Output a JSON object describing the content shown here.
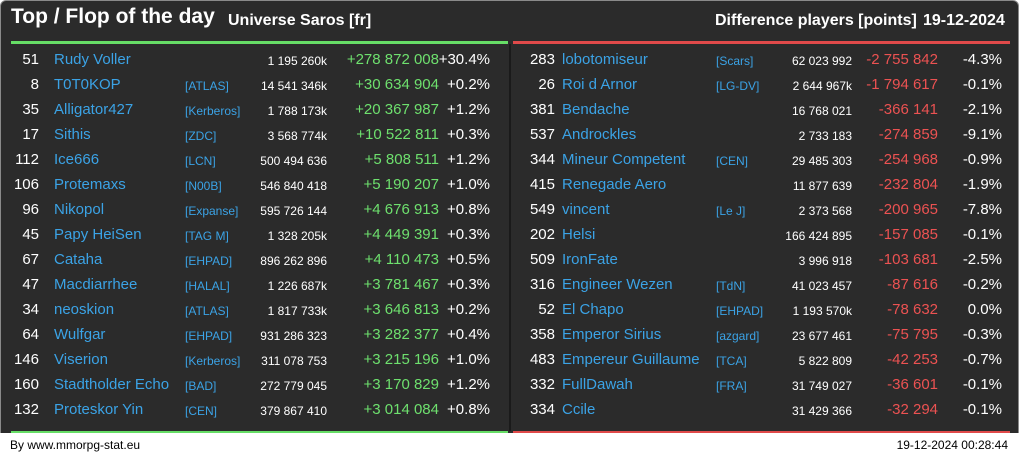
{
  "header": {
    "title": "Top / Flop of the day",
    "universe": "Universe Saros [fr]",
    "difference_label": "Difference players [points]",
    "date": "19-12-2024"
  },
  "colors": {
    "gain": "#6ee06e",
    "loss": "#ec5252",
    "link": "#3ba3e6",
    "background": "#2b2b2b"
  },
  "top": [
    {
      "rank": "51",
      "name": "Rudy Voller",
      "ally": "",
      "points": "1 195 260k",
      "delta": "+278 872 008",
      "pct": "+30.4%"
    },
    {
      "rank": "8",
      "name": "T0T0KOP",
      "ally": "[ATLAS]",
      "points": "14 541 346k",
      "delta": "+30 634 904",
      "pct": "+0.2%"
    },
    {
      "rank": "35",
      "name": "Alligator427",
      "ally": "[Kerberos]",
      "points": "1 788 173k",
      "delta": "+20 367 987",
      "pct": "+1.2%"
    },
    {
      "rank": "17",
      "name": "Sithis",
      "ally": "[ZDC]",
      "points": "3 568 774k",
      "delta": "+10 522 811",
      "pct": "+0.3%"
    },
    {
      "rank": "112",
      "name": "Ice666",
      "ally": "[LCN]",
      "points": "500 494 636",
      "delta": "+5 808 511",
      "pct": "+1.2%"
    },
    {
      "rank": "106",
      "name": "Protemaxs",
      "ally": "[N00B]",
      "points": "546 840 418",
      "delta": "+5 190 207",
      "pct": "+1.0%"
    },
    {
      "rank": "96",
      "name": "Nikopol",
      "ally": "[Expanse]",
      "points": "595 726 144",
      "delta": "+4 676 913",
      "pct": "+0.8%"
    },
    {
      "rank": "45",
      "name": "Papy HeiSen",
      "ally": "[TAG M]",
      "points": "1 328 205k",
      "delta": "+4 449 391",
      "pct": "+0.3%"
    },
    {
      "rank": "67",
      "name": "Cataha",
      "ally": "[EHPAD]",
      "points": "896 262 896",
      "delta": "+4 110 473",
      "pct": "+0.5%"
    },
    {
      "rank": "47",
      "name": "Macdiarrhee",
      "ally": "[HALAL]",
      "points": "1 226 687k",
      "delta": "+3 781 467",
      "pct": "+0.3%"
    },
    {
      "rank": "34",
      "name": "neoskion",
      "ally": "[ATLAS]",
      "points": "1 817 733k",
      "delta": "+3 646 813",
      "pct": "+0.2%"
    },
    {
      "rank": "64",
      "name": "Wulfgar",
      "ally": "[EHPAD]",
      "points": "931 286 323",
      "delta": "+3 282 377",
      "pct": "+0.4%"
    },
    {
      "rank": "146",
      "name": "Viserion",
      "ally": "[Kerberos]",
      "points": "311 078 753",
      "delta": "+3 215 196",
      "pct": "+1.0%"
    },
    {
      "rank": "160",
      "name": "Stadtholder Echo",
      "ally": "[BAD]",
      "points": "272 779 045",
      "delta": "+3 170 829",
      "pct": "+1.2%"
    },
    {
      "rank": "132",
      "name": "Proteskor Yin",
      "ally": "[CEN]",
      "points": "379 867 410",
      "delta": "+3 014 084",
      "pct": "+0.8%"
    }
  ],
  "flop": [
    {
      "rank": "283",
      "name": "lobotomiseur",
      "ally": "[Scars]",
      "points": "62 023 992",
      "delta": "-2 755 842",
      "pct": "-4.3%"
    },
    {
      "rank": "26",
      "name": "Roi d Arnor",
      "ally": "[LG-DV]",
      "points": "2 644 967k",
      "delta": "-1 794 617",
      "pct": "-0.1%"
    },
    {
      "rank": "381",
      "name": "Bendache",
      "ally": "",
      "points": "16 768 021",
      "delta": "-366 141",
      "pct": "-2.1%"
    },
    {
      "rank": "537",
      "name": "Androckles",
      "ally": "",
      "points": "2 733 183",
      "delta": "-274 859",
      "pct": "-9.1%"
    },
    {
      "rank": "344",
      "name": "Mineur Competent",
      "ally": "[CEN]",
      "points": "29 485 303",
      "delta": "-254 968",
      "pct": "-0.9%"
    },
    {
      "rank": "415",
      "name": "Renegade Aero",
      "ally": "",
      "points": "11 877 639",
      "delta": "-232 804",
      "pct": "-1.9%"
    },
    {
      "rank": "549",
      "name": "vincent",
      "ally": "[Le J]",
      "points": "2 373 568",
      "delta": "-200 965",
      "pct": "-7.8%"
    },
    {
      "rank": "202",
      "name": "Helsi",
      "ally": "",
      "points": "166 424 895",
      "delta": "-157 085",
      "pct": "-0.1%"
    },
    {
      "rank": "509",
      "name": "IronFate",
      "ally": "",
      "points": "3 996 918",
      "delta": "-103 681",
      "pct": "-2.5%"
    },
    {
      "rank": "316",
      "name": "Engineer Wezen",
      "ally": "[TdN]",
      "points": "41 023 457",
      "delta": "-87 616",
      "pct": "-0.2%"
    },
    {
      "rank": "52",
      "name": "El Chapo",
      "ally": "[EHPAD]",
      "points": "1 193 570k",
      "delta": "-78 632",
      "pct": "0.0%"
    },
    {
      "rank": "358",
      "name": "Emperor Sirius",
      "ally": "[azgard]",
      "points": "23 677 461",
      "delta": "-75 795",
      "pct": "-0.3%"
    },
    {
      "rank": "483",
      "name": "Empereur Guillaume",
      "ally": "[TCA]",
      "points": "5 822 809",
      "delta": "-42 253",
      "pct": "-0.7%"
    },
    {
      "rank": "332",
      "name": "FullDawah",
      "ally": "[FRA]",
      "points": "31 749 027",
      "delta": "-36 601",
      "pct": "-0.1%"
    },
    {
      "rank": "334",
      "name": "Ccile",
      "ally": "",
      "points": "31 429 366",
      "delta": "-32 294",
      "pct": "-0.1%"
    }
  ],
  "footer": {
    "source": "By www.mmorpg-stat.eu",
    "timestamp": "19-12-2024 00:28:44"
  }
}
